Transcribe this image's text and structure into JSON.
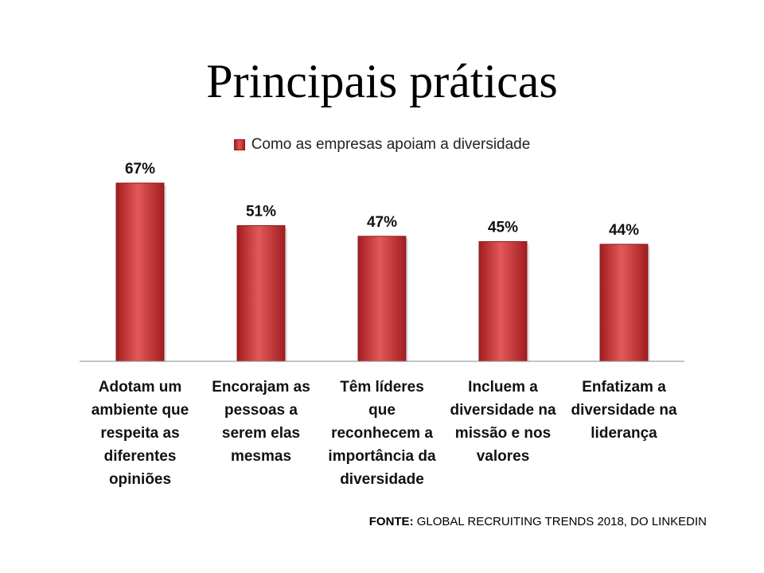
{
  "slide": {
    "title": "Principais práticas",
    "source_prefix": "FONTE:",
    "source_text": "GLOBAL RECRUITING TRENDS 2018, DO LINKEDIN"
  },
  "colors": {
    "bar": "#c9302f",
    "bar_dark": "#a11d20",
    "bar_light": "#e45959",
    "axis": "#888888"
  },
  "chart_data": {
    "type": "bar",
    "categories": [
      "Adotam um ambiente que respeita as diferentes opiniões",
      "Encorajam as pessoas a serem elas mesmas",
      "Têm líderes que reconhecem a importância da diversidade",
      "Incluem a diversidade na missão e nos valores",
      "Enfatizam a diversidade na liderança"
    ],
    "category_lines": [
      [
        "Adotam um",
        "ambiente que",
        "respeita as",
        "diferentes",
        "opiniões"
      ],
      [
        "Encorajam as",
        "pessoas a",
        "serem elas",
        "mesmas"
      ],
      [
        "Têm líderes",
        "que",
        "reconhecem a",
        "importância da",
        "diversidade"
      ],
      [
        "Incluem a",
        "diversidade na",
        "missão e nos",
        "valores"
      ],
      [
        "Enfatizam a",
        "diversidade na",
        "liderança"
      ]
    ],
    "series": [
      {
        "name": "Como as empresas apoiam a diversidade",
        "values": [
          67,
          51,
          47,
          45,
          44
        ]
      }
    ],
    "data_labels": [
      "67%",
      "51%",
      "47%",
      "45%",
      "44%"
    ],
    "ylim": [
      0,
      70
    ],
    "grid": false,
    "legend": "top"
  }
}
